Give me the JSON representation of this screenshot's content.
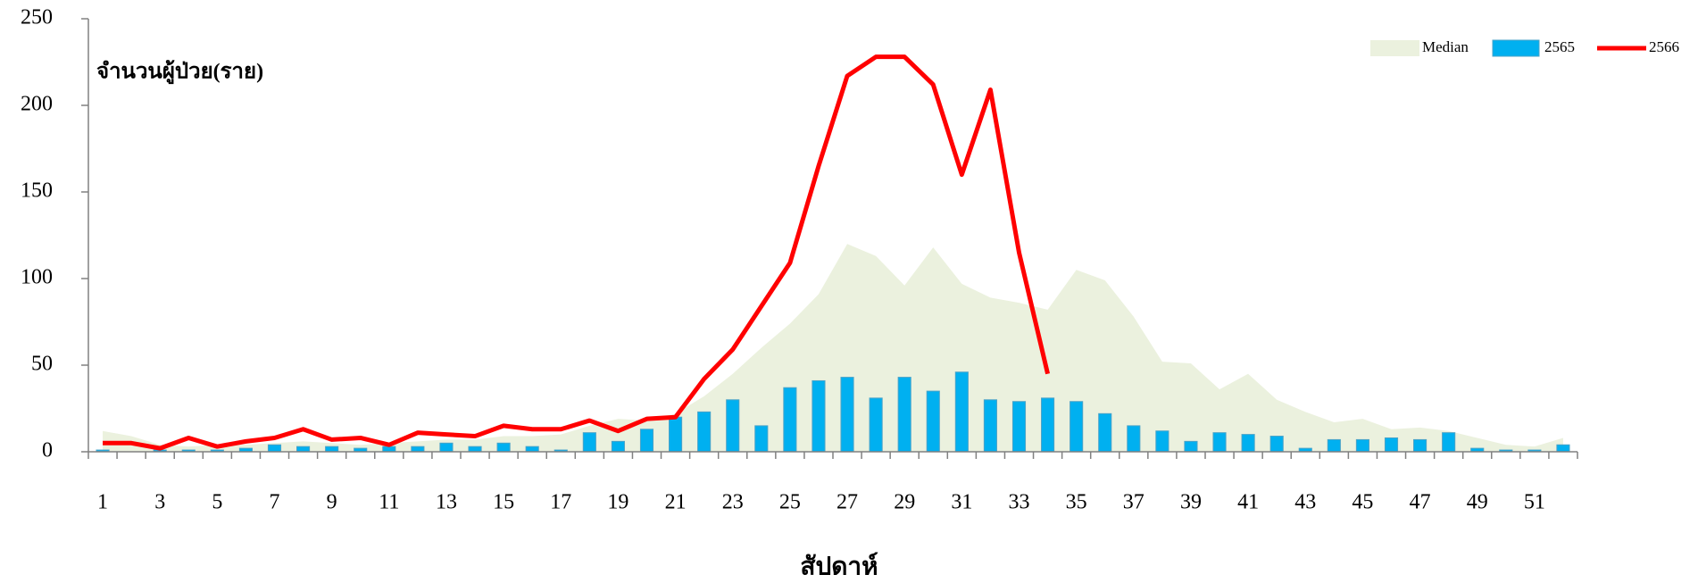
{
  "chart_data": {
    "type": "bar",
    "y_label": "จำนวนผู้ป่วย(ราย)",
    "x_label": "สัปดาห์",
    "categories": [
      "1",
      null,
      "3",
      null,
      "5",
      null,
      "7",
      null,
      "9",
      null,
      "11",
      null,
      "13",
      null,
      "15",
      null,
      "17",
      null,
      "19",
      null,
      "21",
      null,
      "23",
      null,
      "25",
      null,
      "27",
      null,
      "29",
      null,
      "31",
      null,
      "33",
      null,
      "35",
      null,
      "37",
      null,
      "39",
      null,
      "41",
      null,
      "43",
      null,
      "45",
      null,
      "47",
      null,
      "49",
      null,
      "51",
      null
    ],
    "series": [
      {
        "name": "Median",
        "type": "area",
        "color": "#ebf1de",
        "values": [
          12,
          9,
          4,
          3,
          4,
          4,
          5,
          6,
          5,
          4,
          5,
          6,
          7,
          7,
          9,
          9,
          10,
          15,
          19,
          18,
          22,
          32,
          45,
          60,
          74,
          91,
          120,
          113,
          96,
          118,
          97,
          89,
          86,
          82,
          105,
          99,
          78,
          52,
          51,
          36,
          45,
          30,
          23,
          17,
          19,
          13,
          14,
          12,
          8,
          4,
          3,
          8
        ]
      },
      {
        "name": "2565",
        "type": "bar",
        "color": "#00b0f0",
        "values": [
          1,
          0,
          1,
          1,
          1,
          2,
          4,
          3,
          3,
          2,
          3,
          3,
          5,
          3,
          5,
          3,
          1,
          11,
          6,
          13,
          20,
          23,
          30,
          15,
          37,
          41,
          43,
          31,
          43,
          35,
          46,
          30,
          29,
          31,
          29,
          22,
          15,
          12,
          6,
          11,
          10,
          9,
          2,
          7,
          7,
          8,
          7,
          11,
          2,
          1,
          1,
          4
        ]
      },
      {
        "name": "2566",
        "type": "line",
        "color": "#ff0000",
        "values": [
          5,
          5,
          2,
          8,
          3,
          6,
          8,
          13,
          7,
          8,
          4,
          11,
          10,
          9,
          15,
          13,
          13,
          18,
          12,
          19,
          20,
          42,
          59,
          84,
          109,
          165,
          217,
          228,
          228,
          212,
          160,
          209,
          115,
          45,
          null,
          null,
          null,
          null,
          null,
          null,
          null,
          null,
          null,
          null,
          null,
          null,
          null,
          null,
          null,
          null,
          null,
          null
        ]
      }
    ],
    "ylim": [
      0,
      250
    ],
    "yticks": [
      0,
      50,
      100,
      150,
      200,
      250
    ],
    "grid": false,
    "legend": "top right"
  }
}
